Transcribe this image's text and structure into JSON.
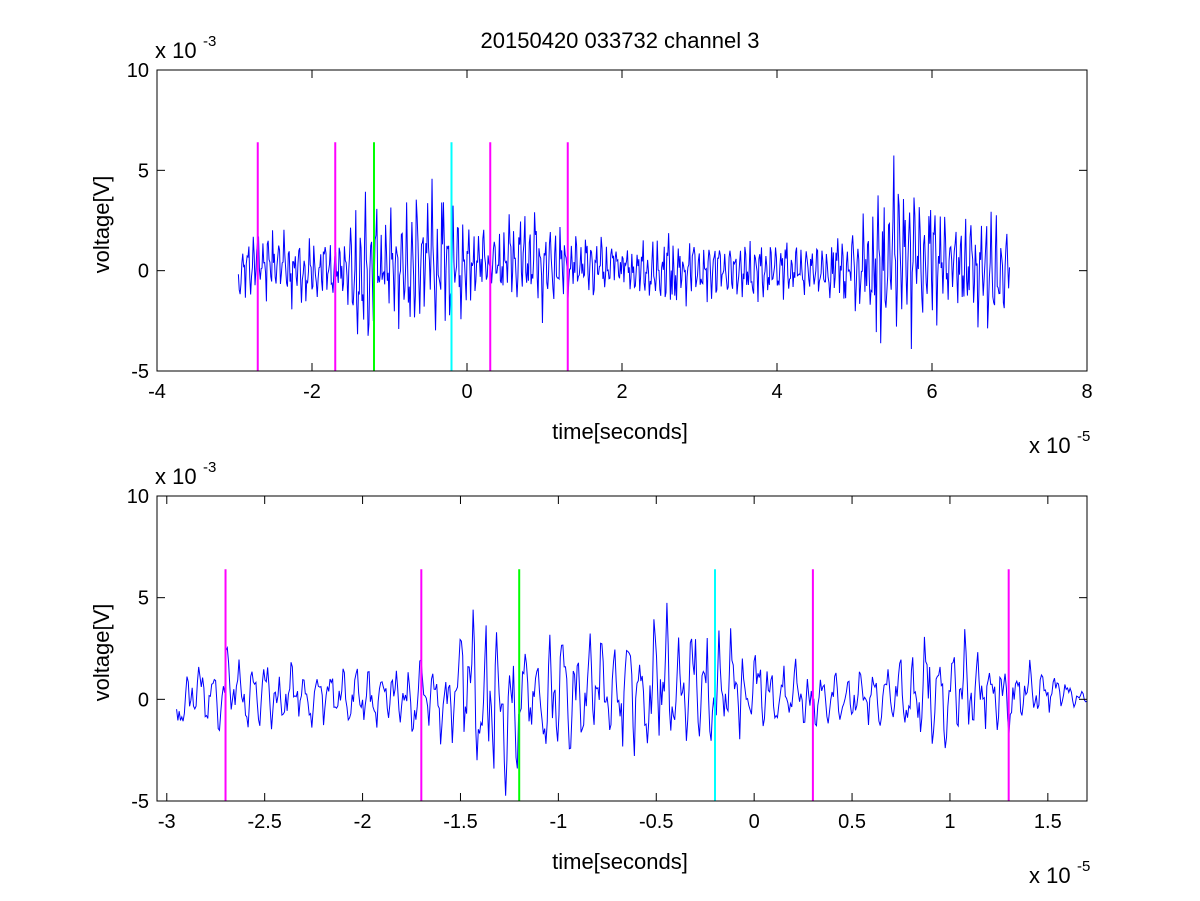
{
  "figure": {
    "title": "20150420 033732 channel 3"
  },
  "chart_data": [
    {
      "type": "line",
      "xlabel": "time[seconds]",
      "ylabel": "voltage[V]",
      "x_exponent_label": {
        "base": "x 10",
        "exp": "-5"
      },
      "y_exponent_label": {
        "base": "x 10",
        "exp": "-3"
      },
      "xlim": [
        -4,
        8
      ],
      "ylim": [
        -5,
        10
      ],
      "x_ticks": [
        -4,
        -2,
        0,
        2,
        4,
        6,
        8
      ],
      "x_tick_labels": [
        "-4",
        "-2",
        "0",
        "2",
        "4",
        "6",
        "8"
      ],
      "y_ticks": [
        -5,
        0,
        5,
        10
      ],
      "y_tick_labels": [
        "-5",
        "0",
        "5",
        "10"
      ],
      "grid": false,
      "series": [
        {
          "color": "#0000ff",
          "x_range": [
            -2.95,
            7.0
          ],
          "samples": 880,
          "envelope_points": [
            [
              -2.95,
              1.0,
              -1.5
            ],
            [
              -2.7,
              2.4,
              -1.5
            ],
            [
              -2.3,
              1.8,
              -1.5
            ],
            [
              -2.0,
              1.6,
              -1.8
            ],
            [
              -1.7,
              1.5,
              -1.6
            ],
            [
              -1.55,
              2.2,
              -2.0
            ],
            [
              -1.35,
              3.8,
              -4.5
            ],
            [
              -1.2,
              3.0,
              -2.3
            ],
            [
              -1.0,
              3.0,
              -2.2
            ],
            [
              -0.8,
              3.2,
              -2.6
            ],
            [
              -0.42,
              4.4,
              -3.0
            ],
            [
              -0.2,
              3.2,
              -2.6
            ],
            [
              0.0,
              3.0,
              -2.0
            ],
            [
              0.3,
              2.0,
              -1.3
            ],
            [
              1.0,
              3.2,
              -2.0
            ],
            [
              1.3,
              1.8,
              -1.2
            ],
            [
              2.0,
              1.4,
              -1.0
            ],
            [
              2.6,
              1.8,
              -1.8
            ],
            [
              3.5,
              1.6,
              -1.6
            ],
            [
              4.5,
              1.4,
              -1.2
            ],
            [
              5.0,
              2.0,
              -1.8
            ],
            [
              5.3,
              4.2,
              -3.6
            ],
            [
              5.55,
              5.8,
              -4.2
            ],
            [
              5.8,
              4.2,
              -3.0
            ],
            [
              6.1,
              3.5,
              -2.8
            ],
            [
              6.4,
              2.5,
              -2.0
            ],
            [
              6.6,
              3.4,
              -2.8
            ],
            [
              6.8,
              2.8,
              -3.2
            ],
            [
              7.0,
              2.0,
              -1.4
            ]
          ]
        }
      ],
      "markers": [
        {
          "x": -2.7,
          "color": "#ff00ff"
        },
        {
          "x": -1.7,
          "color": "#ff00ff"
        },
        {
          "x": -1.2,
          "color": "#00ff00"
        },
        {
          "x": -0.2,
          "color": "#00ffff"
        },
        {
          "x": 0.3,
          "color": "#ff00ff"
        },
        {
          "x": 1.3,
          "color": "#ff00ff"
        }
      ],
      "marker_ymax": 6.4
    },
    {
      "type": "line",
      "xlabel": "time[seconds]",
      "ylabel": "voltage[V]",
      "x_exponent_label": {
        "base": "x 10",
        "exp": "-5"
      },
      "y_exponent_label": {
        "base": "x 10",
        "exp": "-3"
      },
      "xlim": [
        -3.05,
        1.7
      ],
      "ylim": [
        -5,
        10
      ],
      "x_ticks": [
        -3,
        -2.5,
        -2,
        -1.5,
        -1,
        -0.5,
        0,
        0.5,
        1,
        1.5
      ],
      "x_tick_labels": [
        "-3",
        "-2.5",
        "-2",
        "-1.5",
        "-1",
        "-0.5",
        "0",
        "0.5",
        "1",
        "1.5"
      ],
      "y_ticks": [
        -5,
        0,
        5,
        10
      ],
      "y_tick_labels": [
        "-5",
        "0",
        "5",
        "10"
      ],
      "grid": false,
      "series": [
        {
          "color": "#0000ff",
          "x_range": [
            -2.95,
            1.7
          ],
          "samples": 700,
          "envelope_points": [
            [
              -2.95,
              1.0,
              -1.5
            ],
            [
              -2.7,
              2.4,
              -1.5
            ],
            [
              -2.4,
              1.5,
              -1.4
            ],
            [
              -2.1,
              1.8,
              -1.3
            ],
            [
              -1.8,
              1.6,
              -1.5
            ],
            [
              -1.55,
              2.2,
              -2.0
            ],
            [
              -1.45,
              4.4,
              -2.3
            ],
            [
              -1.35,
              3.7,
              -4.6
            ],
            [
              -1.2,
              3.1,
              -3.4
            ],
            [
              -1.0,
              3.0,
              -2.6
            ],
            [
              -0.8,
              3.3,
              -2.2
            ],
            [
              -0.6,
              3.3,
              -2.4
            ],
            [
              -0.42,
              4.4,
              -3.0
            ],
            [
              -0.2,
              3.2,
              -2.8
            ],
            [
              -0.1,
              3.3,
              -2.0
            ],
            [
              0.2,
              1.6,
              -1.4
            ],
            [
              0.4,
              1.4,
              -1.3
            ],
            [
              0.7,
              1.6,
              -1.2
            ],
            [
              1.0,
              3.3,
              -2.7
            ],
            [
              1.15,
              2.5,
              -1.4
            ],
            [
              1.3,
              1.7,
              -1.5
            ],
            [
              1.5,
              1.5,
              -0.6
            ],
            [
              1.7,
              0.4,
              -0.2
            ]
          ]
        }
      ],
      "markers": [
        {
          "x": -2.7,
          "color": "#ff00ff"
        },
        {
          "x": -1.7,
          "color": "#ff00ff"
        },
        {
          "x": -1.2,
          "color": "#00ff00"
        },
        {
          "x": -0.2,
          "color": "#00ffff"
        },
        {
          "x": 0.3,
          "color": "#ff00ff"
        },
        {
          "x": 1.3,
          "color": "#ff00ff"
        }
      ],
      "marker_ymax": 6.4
    }
  ]
}
